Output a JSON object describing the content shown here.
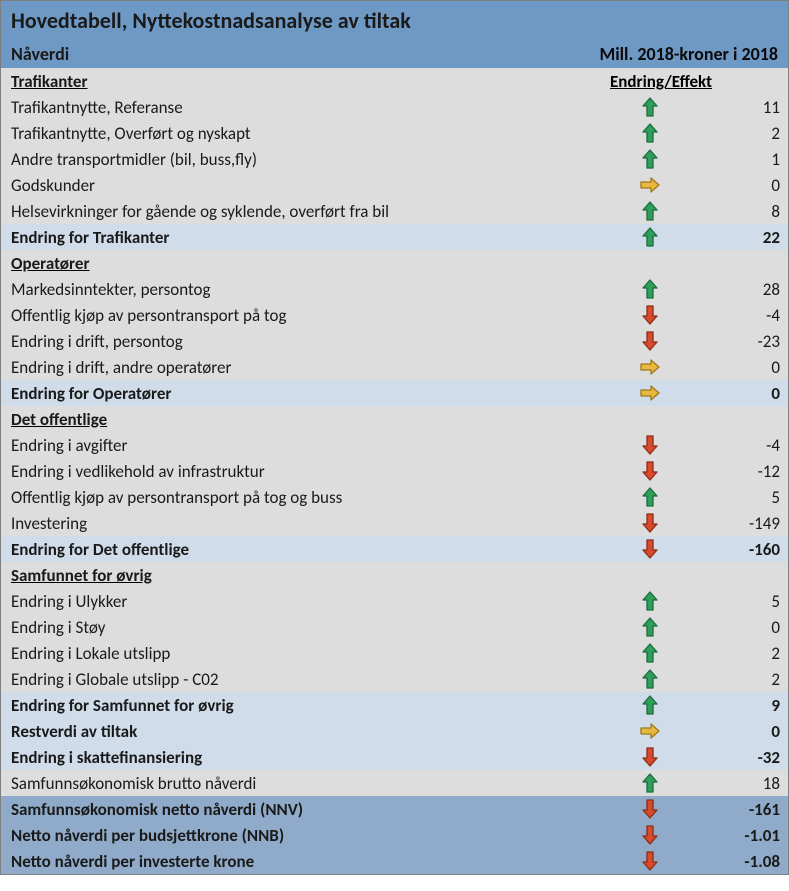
{
  "colors": {
    "arrow_up_fill": "#2e9e5b",
    "arrow_up_stroke": "#1e6b3d",
    "arrow_down_fill": "#d94a2b",
    "arrow_down_stroke": "#8a2d18",
    "arrow_right_fill": "#e8b73e",
    "arrow_right_stroke": "#9c7820",
    "title_bg": "#6f99c5",
    "section_bg": "#dddddd",
    "subtotal_bg": "#d0dce9",
    "totals_bg": "#8fabc9"
  },
  "title": "Hovedtabell, Nyttekostnadsanalyse av tiltak",
  "subtitle_left": "Nåverdi",
  "subtitle_right": "Mill. 2018-kroner i 2018",
  "effect_header": "Endring/Effekt",
  "sections": [
    {
      "header": "Trafikanter",
      "rows": [
        {
          "label": "Trafikantnytte, Referanse",
          "dir": "up",
          "value": "11"
        },
        {
          "label": "Trafikantnytte, Overført og nyskapt",
          "dir": "up",
          "value": "2"
        },
        {
          "label": "Andre transportmidler (bil, buss,fly)",
          "dir": "up",
          "value": "1"
        },
        {
          "label": "Godskunder",
          "dir": "right",
          "value": "0"
        },
        {
          "label": "Helsevirkninger for gående og syklende, overført fra bil",
          "dir": "up",
          "value": "8"
        }
      ],
      "subtotal": {
        "label": "Endring for Trafikanter",
        "dir": "up",
        "value": "22"
      }
    },
    {
      "header": "Operatører",
      "rows": [
        {
          "label": "Markedsinntekter, persontog",
          "dir": "up",
          "value": "28"
        },
        {
          "label": "Offentlig kjøp av persontransport på tog",
          "dir": "down",
          "value": "-4"
        },
        {
          "label": "Endring i drift, persontog",
          "dir": "down",
          "value": "-23"
        },
        {
          "label": "Endring i drift, andre operatører",
          "dir": "right",
          "value": "0"
        }
      ],
      "subtotal": {
        "label": "Endring for Operatører",
        "dir": "right",
        "value": "0"
      }
    },
    {
      "header": "Det offentlige",
      "rows": [
        {
          "label": "Endring i avgifter",
          "dir": "down",
          "value": "-4"
        },
        {
          "label": "Endring i vedlikehold av infrastruktur",
          "dir": "down",
          "value": "-12"
        },
        {
          "label": "Offentlig kjøp av persontransport på tog og buss",
          "dir": "up",
          "value": "5"
        },
        {
          "label": "Investering",
          "dir": "down",
          "value": "-149"
        }
      ],
      "subtotal": {
        "label": "Endring for Det offentlige",
        "dir": "down",
        "value": "-160"
      }
    },
    {
      "header": "Samfunnet for øvrig",
      "rows": [
        {
          "label": "Endring i Ulykker",
          "dir": "up",
          "value": "5"
        },
        {
          "label": "Endring i Støy",
          "dir": "up",
          "value": "0"
        },
        {
          "label": "Endring i Lokale utslipp",
          "dir": "up",
          "value": "2"
        },
        {
          "label": "Endring i Globale utslipp - C02",
          "dir": "up",
          "value": "2"
        }
      ],
      "subtotal": {
        "label": "Endring for Samfunnet for øvrig",
        "dir": "up",
        "value": "9"
      }
    }
  ],
  "extras": [
    {
      "label": "Restverdi av tiltak",
      "dir": "right",
      "value": "0",
      "cls": "subtotal-row"
    },
    {
      "label": "Endring i skattefinansiering",
      "dir": "down",
      "value": "-32",
      "cls": "subtotal-row"
    },
    {
      "label": "Samfunnsøkonomisk brutto nåverdi",
      "dir": "up",
      "value": "18",
      "cls": "data-row"
    }
  ],
  "totals": [
    {
      "label": "Samfunnsøkonomisk netto nåverdi (NNV)",
      "dir": "down",
      "value": "-161"
    },
    {
      "label": "Netto nåverdi per budsjettkrone (NNB)",
      "dir": "down",
      "value": "-1.01"
    },
    {
      "label": "Netto nåverdi per investerte krone",
      "dir": "down",
      "value": "-1.08"
    }
  ]
}
